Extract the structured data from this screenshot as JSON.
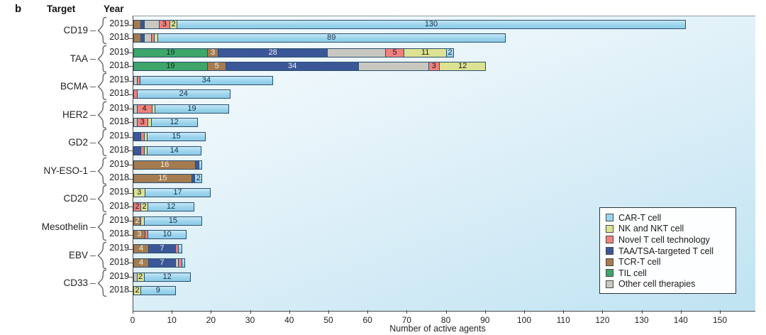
{
  "figure": {
    "panel_label": "b",
    "col_target": "Target",
    "col_year": "Year"
  },
  "axis": {
    "label": "Number of active agents",
    "min": 0,
    "max": 150,
    "tick_step": 10,
    "ticks": [
      0,
      10,
      20,
      30,
      40,
      50,
      60,
      70,
      80,
      90,
      100,
      110,
      120,
      130,
      140,
      150
    ]
  },
  "legend": {
    "position": "bottom-right",
    "items": [
      {
        "key": "car_t",
        "label": "CAR-T cell",
        "color": "#9bd4ed",
        "text_color": "#14324a"
      },
      {
        "key": "nk",
        "label": "NK and NKT cell",
        "color": "#dde293",
        "text_color": "#1a1a1a"
      },
      {
        "key": "novel",
        "label": "Novel T cell technology",
        "color": "#f0817e",
        "text_color": "#1a1a1a"
      },
      {
        "key": "taa_tsa",
        "label": "TAA/TSA-targeted T cell",
        "color": "#3b5798",
        "text_color": "#f5f0e4"
      },
      {
        "key": "tcr",
        "label": "TCR-T cell",
        "color": "#a57b50",
        "text_color": "#f5f0e4"
      },
      {
        "key": "til",
        "label": "TIL cell",
        "color": "#3ea56b",
        "text_color": "#10301c"
      },
      {
        "key": "other",
        "label": "Other cell therapies",
        "color": "#c9c8c0",
        "text_color": "#1a1a1a"
      }
    ]
  },
  "chart_data": {
    "type": "bar",
    "orientation": "horizontal-stacked",
    "title": "",
    "xlabel": "Number of active agents",
    "xlim": [
      0,
      150
    ],
    "grid": false,
    "stack_order": [
      "til",
      "tcr",
      "taa_tsa",
      "other",
      "novel",
      "nk",
      "car_t"
    ],
    "groups": [
      {
        "target": "CD19",
        "rows": [
          {
            "year": "2019",
            "segments": [
              {
                "k": "tcr",
                "v": 2
              },
              {
                "k": "taa_tsa",
                "v": 1
              },
              {
                "k": "other",
                "v": 4
              },
              {
                "k": "novel",
                "v": 3,
                "t": "3"
              },
              {
                "k": "nk",
                "v": 2,
                "t": "2"
              },
              {
                "k": "car_t",
                "v": 130,
                "t": "130"
              }
            ]
          },
          {
            "year": "2018",
            "segments": [
              {
                "k": "tcr",
                "v": 2
              },
              {
                "k": "taa_tsa",
                "v": 1
              },
              {
                "k": "other",
                "v": 2
              },
              {
                "k": "novel",
                "v": 1
              },
              {
                "k": "nk",
                "v": 1
              },
              {
                "k": "car_t",
                "v": 89,
                "t": "89"
              }
            ]
          }
        ]
      },
      {
        "target": "TAA",
        "rows": [
          {
            "year": "2019",
            "segments": [
              {
                "k": "til",
                "v": 19,
                "t": "19"
              },
              {
                "k": "tcr",
                "v": 3,
                "t": "3"
              },
              {
                "k": "taa_tsa",
                "v": 28,
                "t": "28"
              },
              {
                "k": "other",
                "v": 15
              },
              {
                "k": "novel",
                "v": 5,
                "t": "5"
              },
              {
                "k": "nk",
                "v": 11,
                "t": "11"
              },
              {
                "k": "car_t",
                "v": 2,
                "t": "2"
              }
            ]
          },
          {
            "year": "2018",
            "segments": [
              {
                "k": "til",
                "v": 19,
                "t": "19"
              },
              {
                "k": "tcr",
                "v": 5,
                "t": "5"
              },
              {
                "k": "taa_tsa",
                "v": 34,
                "t": "34"
              },
              {
                "k": "other",
                "v": 18
              },
              {
                "k": "novel",
                "v": 3,
                "t": "3"
              },
              {
                "k": "nk",
                "v": 12,
                "t": "12"
              }
            ]
          }
        ]
      },
      {
        "target": "BCMA",
        "rows": [
          {
            "year": "2019",
            "segments": [
              {
                "k": "other",
                "v": 1
              },
              {
                "k": "novel",
                "v": 1
              },
              {
                "k": "car_t",
                "v": 34,
                "t": "34"
              }
            ]
          },
          {
            "year": "2018",
            "segments": [
              {
                "k": "novel",
                "v": 1
              },
              {
                "k": "car_t",
                "v": 24,
                "t": "24"
              }
            ]
          }
        ]
      },
      {
        "target": "HER2",
        "rows": [
          {
            "year": "2019",
            "segments": [
              {
                "k": "other",
                "v": 1
              },
              {
                "k": "novel",
                "v": 4,
                "t": "4"
              },
              {
                "k": "nk",
                "v": 1
              },
              {
                "k": "car_t",
                "v": 19,
                "t": "19"
              }
            ]
          },
          {
            "year": "2018",
            "segments": [
              {
                "k": "other",
                "v": 1
              },
              {
                "k": "novel",
                "v": 3,
                "t": "3"
              },
              {
                "k": "nk",
                "v": 1
              },
              {
                "k": "car_t",
                "v": 12,
                "t": "12"
              }
            ]
          }
        ]
      },
      {
        "target": "GD2",
        "rows": [
          {
            "year": "2019",
            "segments": [
              {
                "k": "taa_tsa",
                "v": 2
              },
              {
                "k": "novel",
                "v": 1
              },
              {
                "k": "nk",
                "v": 1
              },
              {
                "k": "car_t",
                "v": 15,
                "t": "15"
              }
            ]
          },
          {
            "year": "2018",
            "segments": [
              {
                "k": "taa_tsa",
                "v": 2
              },
              {
                "k": "novel",
                "v": 1
              },
              {
                "k": "nk",
                "v": 1
              },
              {
                "k": "car_t",
                "v": 14,
                "t": "14"
              }
            ]
          }
        ]
      },
      {
        "target": "NY-ESO-1",
        "rows": [
          {
            "year": "2019",
            "segments": [
              {
                "k": "tcr",
                "v": 16,
                "t": "16"
              },
              {
                "k": "taa_tsa",
                "v": 1
              },
              {
                "k": "car_t",
                "v": 1
              }
            ]
          },
          {
            "year": "2018",
            "segments": [
              {
                "k": "tcr",
                "v": 15,
                "t": "15"
              },
              {
                "k": "taa_tsa",
                "v": 1
              },
              {
                "k": "car_t",
                "v": 2,
                "t": "2"
              }
            ]
          }
        ]
      },
      {
        "target": "CD20",
        "rows": [
          {
            "year": "2019",
            "segments": [
              {
                "k": "nk",
                "v": 3,
                "t": "3"
              },
              {
                "k": "car_t",
                "v": 17,
                "t": "17"
              }
            ]
          },
          {
            "year": "2018",
            "segments": [
              {
                "k": "novel",
                "v": 2,
                "t": "2"
              },
              {
                "k": "nk",
                "v": 2,
                "t": "2"
              },
              {
                "k": "car_t",
                "v": 12,
                "t": "12"
              }
            ]
          }
        ]
      },
      {
        "target": "Mesothelin",
        "rows": [
          {
            "year": "2019",
            "segments": [
              {
                "k": "tcr",
                "v": 2,
                "t": "2"
              },
              {
                "k": "nk",
                "v": 1
              },
              {
                "k": "car_t",
                "v": 15,
                "t": "15"
              }
            ]
          },
          {
            "year": "2018",
            "segments": [
              {
                "k": "tcr",
                "v": 3,
                "t": "3"
              },
              {
                "k": "novel",
                "v": 1
              },
              {
                "k": "car_t",
                "v": 10,
                "t": "10"
              }
            ]
          }
        ]
      },
      {
        "target": "EBV",
        "rows": [
          {
            "year": "2019",
            "segments": [
              {
                "k": "tcr",
                "v": 4,
                "t": "4"
              },
              {
                "k": "taa_tsa",
                "v": 7,
                "t": "7"
              },
              {
                "k": "novel",
                "v": 1
              },
              {
                "k": "car_t",
                "v": 1
              }
            ]
          },
          {
            "year": "2018",
            "segments": [
              {
                "k": "tcr",
                "v": 4,
                "t": "4"
              },
              {
                "k": "taa_tsa",
                "v": 7,
                "t": "7"
              },
              {
                "k": "other",
                "v": 1
              },
              {
                "k": "novel",
                "v": 1
              },
              {
                "k": "car_t",
                "v": 1
              }
            ]
          }
        ]
      },
      {
        "target": "CD33",
        "rows": [
          {
            "year": "2019",
            "segments": [
              {
                "k": "other",
                "v": 1
              },
              {
                "k": "nk",
                "v": 2,
                "t": "2"
              },
              {
                "k": "car_t",
                "v": 12,
                "t": "12"
              }
            ]
          },
          {
            "year": "2018",
            "segments": [
              {
                "k": "nk",
                "v": 2,
                "t": "2"
              },
              {
                "k": "car_t",
                "v": 9,
                "t": "9"
              }
            ]
          }
        ]
      }
    ]
  }
}
